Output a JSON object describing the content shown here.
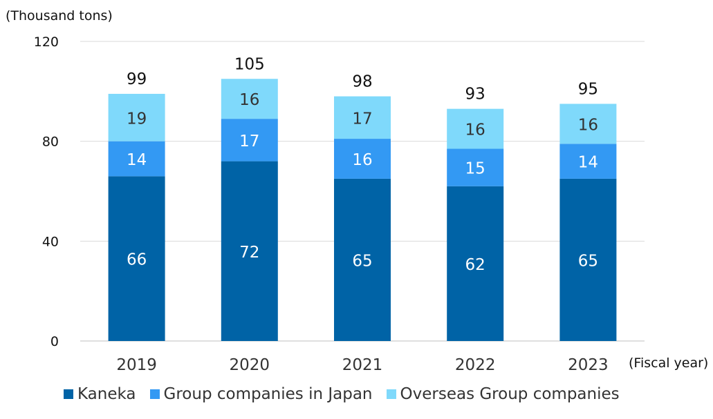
{
  "chart_data": {
    "type": "bar",
    "stacked": true,
    "ylabel": "(Thousand tons)",
    "xlabel": "(Fiscal year)",
    "categories": [
      "2019",
      "2020",
      "2021",
      "2022",
      "2023"
    ],
    "series": [
      {
        "name": "Kaneka",
        "values": [
          66,
          72,
          65,
          62,
          65
        ],
        "color": "#0063a6"
      },
      {
        "name": "Group companies in Japan",
        "values": [
          14,
          17,
          16,
          15,
          14
        ],
        "color": "#3399f3"
      },
      {
        "name": "Overseas Group companies",
        "values": [
          19,
          16,
          17,
          16,
          16
        ],
        "color": "#7fd9fb"
      }
    ],
    "totals": [
      99,
      105,
      98,
      93,
      95
    ],
    "ylim": [
      0,
      120
    ],
    "yticks": [
      0,
      40,
      80,
      120
    ],
    "grid": true,
    "legend_position": "bottom"
  }
}
